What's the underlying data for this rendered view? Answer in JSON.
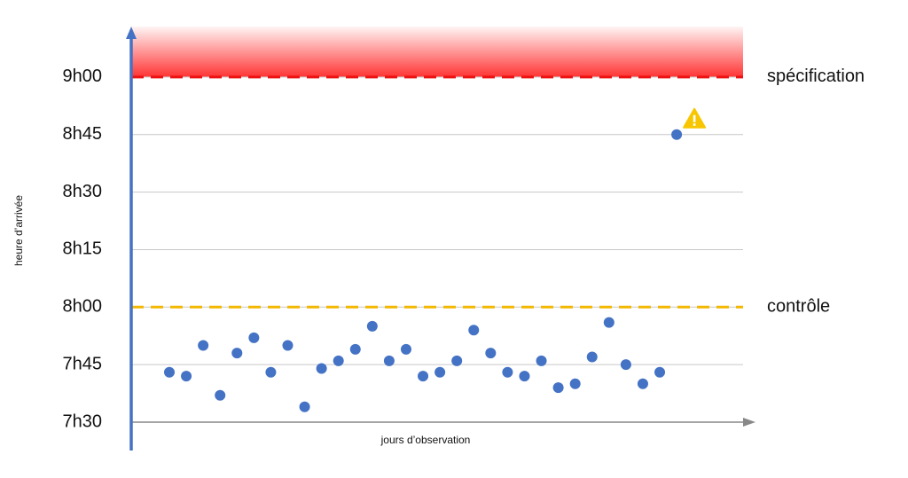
{
  "chart_data": {
    "type": "scatter",
    "y_label": "heure d’arrivée",
    "x_label": "jours d’observation",
    "categories": [
      null,
      null,
      null,
      null,
      null,
      null,
      null,
      null,
      null,
      null,
      null,
      null,
      null,
      null,
      null,
      null,
      null,
      null,
      null,
      null,
      null,
      null,
      null,
      null,
      null,
      null,
      null,
      null,
      null,
      null,
      null
    ],
    "values": [
      463,
      462,
      470,
      457,
      468,
      472,
      463,
      470,
      454,
      464,
      466,
      469,
      475,
      466,
      469,
      462,
      463,
      466,
      474,
      468,
      463,
      462,
      466,
      459,
      460,
      467,
      476,
      465,
      460,
      463,
      525
    ],
    "color": "#4472c4",
    "ylim": [
      450,
      552
    ],
    "yticks": [
      {
        "value": 450,
        "label": "7h30"
      },
      {
        "value": 465,
        "label": "7h45"
      },
      {
        "value": 480,
        "label": "8h00"
      },
      {
        "value": 495,
        "label": "8h15"
      },
      {
        "value": 510,
        "label": "8h30"
      },
      {
        "value": 525,
        "label": "8h45"
      },
      {
        "value": 540,
        "label": "9h00"
      }
    ],
    "grid": true,
    "reference_lines": [
      {
        "value": 540,
        "label": "spécification",
        "color": "#ee1111",
        "shade_above": true
      },
      {
        "value": 480,
        "label": "contrôle",
        "color": "#f2b800",
        "shade_above": false
      }
    ]
  }
}
